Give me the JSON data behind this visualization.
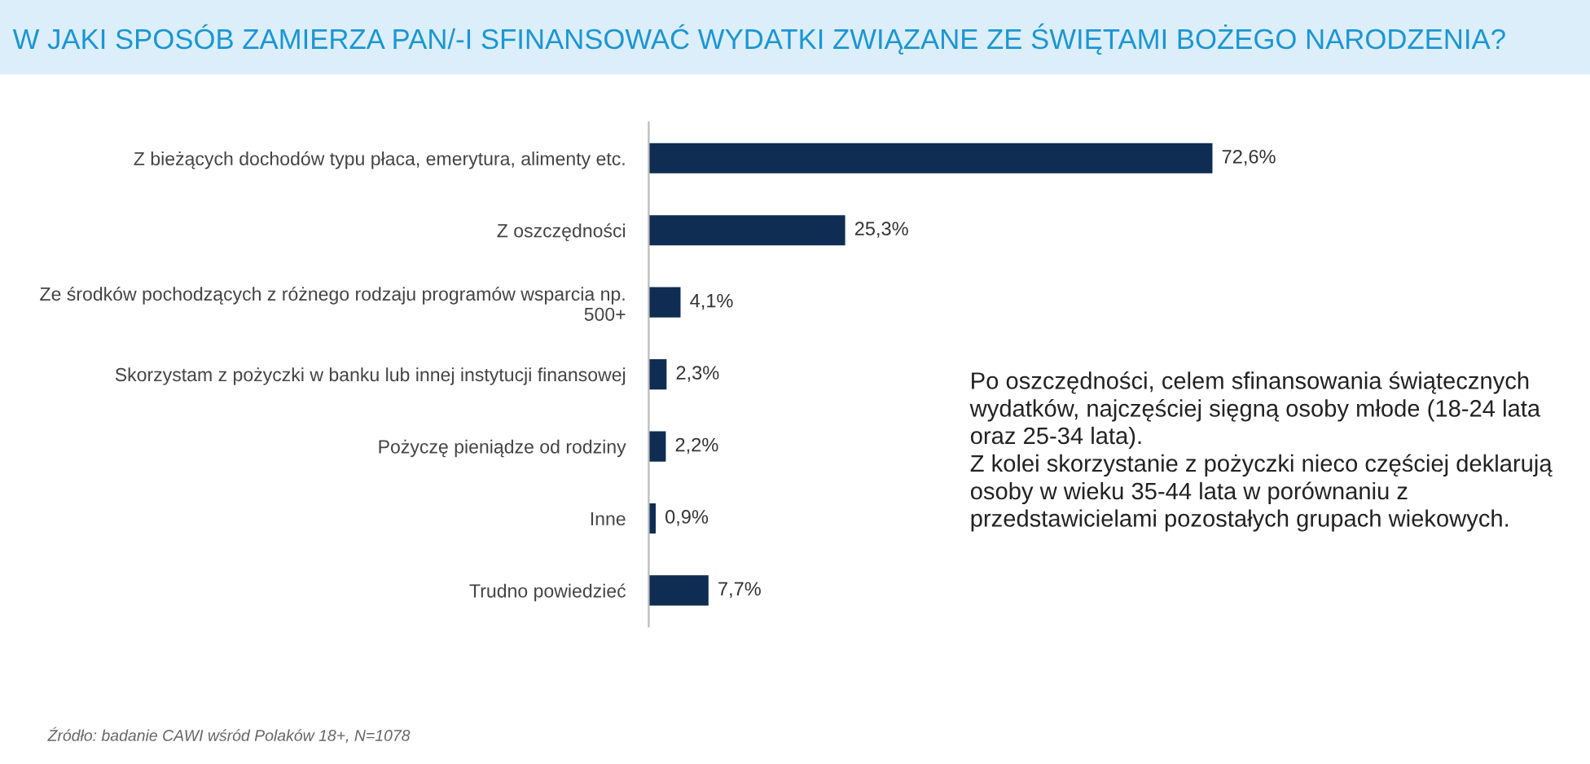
{
  "chart_data": {
    "type": "bar",
    "orientation": "horizontal",
    "title": "W JAKI SPOSÓB ZAMIERZA PAN/-I SFINANSOWAĆ WYDATKI ZWIĄZANE ZE ŚWIĘTAMI BOŻEGO NARODZENIA?",
    "categories": [
      "Z bieżących dochodów typu płaca, emerytura, alimenty etc.",
      "Z oszczędności",
      "Ze środków pochodzących z różnego rodzaju programów wsparcia np.\n500+",
      "Skorzystam z pożyczki w banku lub innej instytucji finansowej",
      "Pożyczę pieniądze od rodziny",
      "Inne",
      "Trudno powiedzieć"
    ],
    "values": [
      72.6,
      25.3,
      4.1,
      2.3,
      2.2,
      0.9,
      7.7
    ],
    "value_labels": [
      "72,6%",
      "25,3%",
      "4,1%",
      "2,3%",
      "2,2%",
      "0,9%",
      "7,7%"
    ],
    "color": "#0f2d52",
    "tick_labels": "y",
    "annotations": [
      "Po oszczędności, celem sfinansowania świątecznych wydatków, najczęściej sięgną osoby młode (18-24 lata oraz 25-34 lata).\nZ kolei skorzystanie z pożyczki nieco częściej deklarują osoby w wieku 35-44 lata w porównaniu z przedstawicielami pozostałych grupach wiekowych.",
      "Źródło: badanie CAWI wśród Polaków 18+, N=1078"
    ]
  }
}
